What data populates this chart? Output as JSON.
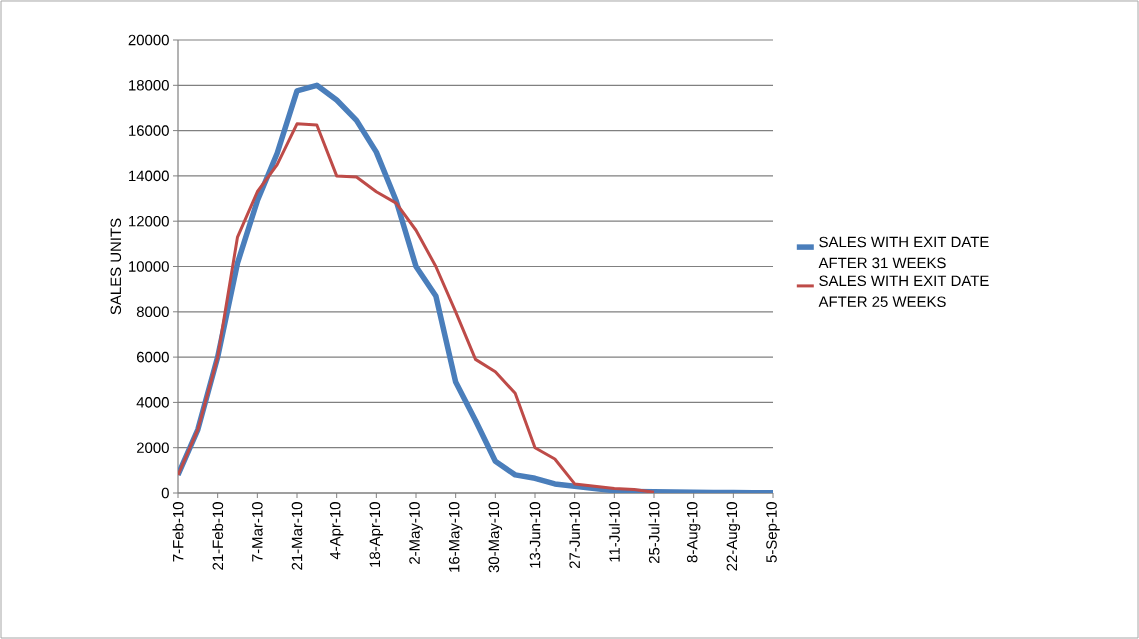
{
  "chart_data": {
    "type": "line",
    "ylabel": "SALES UNITS",
    "categories": [
      "7-Feb-10",
      null,
      "21-Feb-10",
      null,
      "7-Mar-10",
      null,
      "21-Mar-10",
      null,
      "4-Apr-10",
      null,
      "18-Apr-10",
      null,
      "2-May-10",
      null,
      "16-May-10",
      null,
      "30-May-10",
      null,
      "13-Jun-10",
      null,
      "27-Jun-10",
      null,
      "11-Jul-10",
      null,
      "25-Jul-10",
      null,
      "8-Aug-10",
      null,
      "22-Aug-10",
      null,
      "5-Sep-10"
    ],
    "series": [
      {
        "name": "SALES WITH EXIT DATE AFTER 31 WEEKS",
        "color": "#4a7ebb",
        "values": [
          800,
          2800,
          6000,
          10150,
          12900,
          15000,
          17750,
          18000,
          17350,
          16450,
          15050,
          12900,
          10000,
          8700,
          4900,
          3200,
          1400,
          800,
          650,
          400,
          300,
          200,
          100,
          70,
          50,
          40,
          30,
          20,
          20,
          10,
          10
        ]
      },
      {
        "name": "SALES WITH EXIT DATE AFTER 25 WEEKS",
        "color": "#be4b48",
        "values": [
          800,
          2800,
          6000,
          11300,
          13300,
          14500,
          16300,
          16250,
          14000,
          13950,
          13300,
          12800,
          11600,
          10000,
          8000,
          5900,
          5350,
          4400,
          2000,
          1500,
          400,
          300,
          200,
          150,
          30,
          null,
          null,
          null,
          null,
          null,
          null
        ]
      }
    ],
    "ylim": [
      0,
      20000
    ],
    "yticks": [
      0,
      2000,
      4000,
      6000,
      8000,
      10000,
      12000,
      14000,
      16000,
      18000,
      20000
    ],
    "grid": "y",
    "legend": "right",
    "marker": "none",
    "line_style": "solid"
  }
}
